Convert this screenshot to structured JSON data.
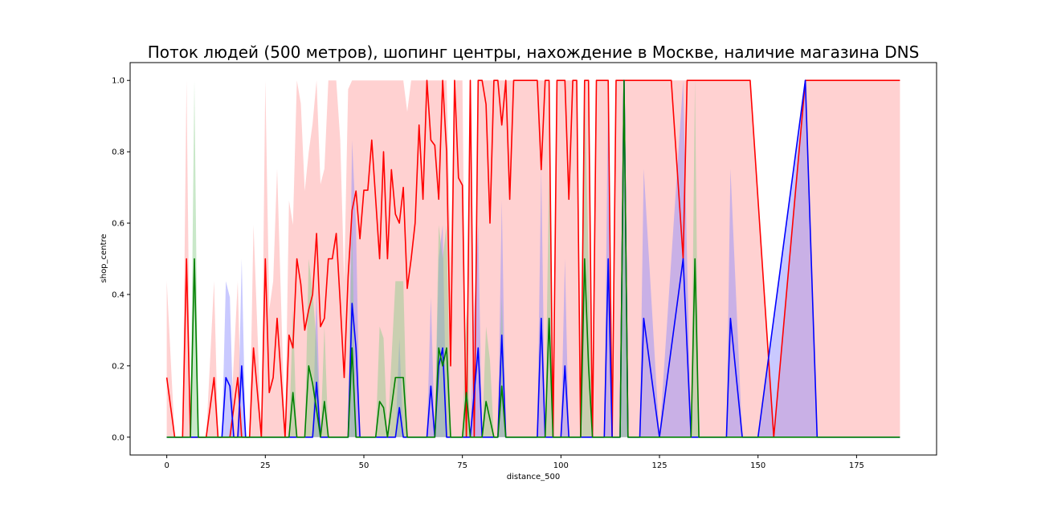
{
  "chart_data": {
    "type": "line",
    "title": "Поток людей (500 метров), шопинг центры, нахождение в Москве, наличие магазина DNS",
    "xlabel": "distance_500",
    "ylabel": "shop_centre",
    "xlim": [
      -9.3,
      195.3
    ],
    "ylim": [
      -0.05,
      1.05
    ],
    "x_ticks": [
      0,
      25,
      50,
      75,
      100,
      125,
      150,
      175
    ],
    "y_ticks": [
      0.0,
      0.2,
      0.4,
      0.6,
      0.8,
      1.0
    ],
    "x_tick_labels": [
      "0",
      "25",
      "50",
      "75",
      "100",
      "125",
      "150",
      "175"
    ],
    "y_tick_labels": [
      "0.0",
      "0.2",
      "0.4",
      "0.6",
      "0.8",
      "1.0"
    ],
    "grid": false,
    "legend": "none",
    "series": [
      {
        "color": "#ff0000",
        "band_color": "#ff9a9a",
        "x": [
          0,
          2,
          4,
          5,
          6,
          8,
          10,
          12,
          13,
          14,
          16,
          18,
          19,
          20,
          21,
          22,
          24,
          25,
          26,
          27,
          28,
          30,
          31,
          32,
          33,
          34,
          35,
          36,
          37,
          38,
          39,
          40,
          41,
          42,
          43,
          44,
          45,
          46,
          47,
          48,
          49,
          50,
          51,
          52,
          53,
          54,
          55,
          56,
          57,
          58,
          59,
          60,
          61,
          62,
          63,
          64,
          65,
          66,
          67,
          68,
          69,
          70,
          71,
          72,
          73,
          74,
          75,
          76,
          77,
          78,
          79,
          80,
          81,
          82,
          83,
          84,
          85,
          86,
          87,
          88,
          89,
          90,
          91,
          92,
          93,
          94,
          95,
          96,
          97,
          98,
          99,
          100,
          101,
          102,
          103,
          104,
          105,
          106,
          107,
          108,
          109,
          110,
          111,
          112,
          113,
          114,
          115,
          116,
          117,
          118,
          119,
          120,
          125,
          128,
          131,
          132,
          135,
          140,
          145,
          148,
          154,
          162,
          186
        ],
        "values": [
          0.167,
          0.0,
          0.0,
          0.5,
          0.0,
          0.0,
          0.0,
          0.167,
          0.0,
          0.0,
          0.0,
          0.167,
          0.0,
          0.0,
          0.0,
          0.25,
          0.0,
          0.5,
          0.125,
          0.167,
          0.333,
          0.0,
          0.286,
          0.25,
          0.5,
          0.429,
          0.3,
          0.357,
          0.4,
          0.571,
          0.31,
          0.333,
          0.5,
          0.5,
          0.571,
          0.375,
          0.167,
          0.45,
          0.636,
          0.69,
          0.556,
          0.692,
          0.692,
          0.833,
          0.667,
          0.5,
          0.8,
          0.5,
          0.75,
          0.625,
          0.6,
          0.7,
          0.417,
          0.5,
          0.6,
          0.875,
          0.667,
          1.0,
          0.833,
          0.818,
          0.667,
          1.0,
          0.8,
          0.2,
          1.0,
          0.727,
          0.706,
          0.0,
          1.0,
          0.0,
          1.0,
          1.0,
          0.933,
          0.6,
          1.0,
          1.0,
          0.875,
          1.0,
          0.667,
          1.0,
          1.0,
          1.0,
          1.0,
          1.0,
          1.0,
          1.0,
          0.75,
          1.0,
          1.0,
          0.0,
          1.0,
          1.0,
          1.0,
          0.667,
          1.0,
          1.0,
          0.0,
          1.0,
          1.0,
          0.0,
          1.0,
          1.0,
          1.0,
          1.0,
          0.0,
          1.0,
          1.0,
          1.0,
          1.0,
          1.0,
          1.0,
          1.0,
          1.0,
          1.0,
          0.5,
          1.0,
          1.0,
          1.0,
          1.0,
          1.0,
          0.0,
          1.0,
          1.0
        ]
      },
      {
        "color": "#0000ff",
        "band_color": "#8888ff",
        "x": [
          0,
          14,
          15,
          16,
          17,
          18,
          19,
          20,
          21,
          36,
          37,
          38,
          39,
          40,
          45,
          46,
          47,
          48,
          49,
          58,
          59,
          60,
          61,
          66,
          67,
          68,
          69,
          70,
          71,
          72,
          77,
          78,
          79,
          80,
          83,
          84,
          85,
          86,
          94,
          95,
          96,
          100,
          101,
          102,
          111,
          112,
          113,
          114,
          115,
          116,
          117,
          118,
          120,
          121,
          125,
          131,
          133,
          135,
          142,
          143,
          146,
          150,
          162,
          165,
          186
        ],
        "values": [
          0,
          0,
          0.167,
          0.143,
          0,
          0,
          0.2,
          0,
          0,
          0,
          0,
          0.154,
          0,
          0,
          0,
          0,
          0.375,
          0.25,
          0,
          0,
          0.083,
          0,
          0,
          0,
          0.143,
          0,
          0.2,
          0.25,
          0,
          0,
          0,
          0.125,
          0.25,
          0,
          0,
          0,
          0.286,
          0,
          0,
          0.333,
          0,
          0,
          0.2,
          0,
          0,
          0.5,
          0,
          0,
          0,
          1.0,
          0,
          0,
          0,
          0.333,
          0,
          0.5,
          0,
          0,
          0,
          0.333,
          0,
          0,
          1.0,
          0,
          0
        ]
      },
      {
        "color": "#008000",
        "band_color": "#88cc88",
        "x": [
          0,
          6,
          7,
          8,
          30,
          31,
          32,
          33,
          35,
          36,
          37,
          38,
          39,
          40,
          41,
          45,
          46,
          47,
          48,
          49,
          53,
          54,
          55,
          56,
          58,
          59,
          60,
          61,
          68,
          69,
          70,
          71,
          72,
          75,
          76,
          77,
          80,
          81,
          82,
          83,
          84,
          85,
          86,
          96,
          97,
          98,
          104,
          105,
          106,
          107,
          108,
          114,
          115,
          116,
          117,
          132,
          133,
          134,
          135,
          186
        ],
        "values": [
          0,
          0,
          0.5,
          0,
          0,
          0,
          0.125,
          0,
          0,
          0.2,
          0.15,
          0.077,
          0,
          0.1,
          0,
          0,
          0,
          0.25,
          0,
          0,
          0,
          0.1,
          0.083,
          0,
          0.167,
          0.167,
          0.167,
          0,
          0,
          0.25,
          0.2,
          0.25,
          0,
          0,
          0.125,
          0,
          0,
          0.1,
          0.05,
          0,
          0,
          0.143,
          0,
          0,
          0.333,
          0,
          0,
          0,
          0.5,
          0.2,
          0,
          0,
          0,
          1.0,
          0,
          0,
          0,
          0.5,
          0,
          0
        ]
      }
    ]
  }
}
